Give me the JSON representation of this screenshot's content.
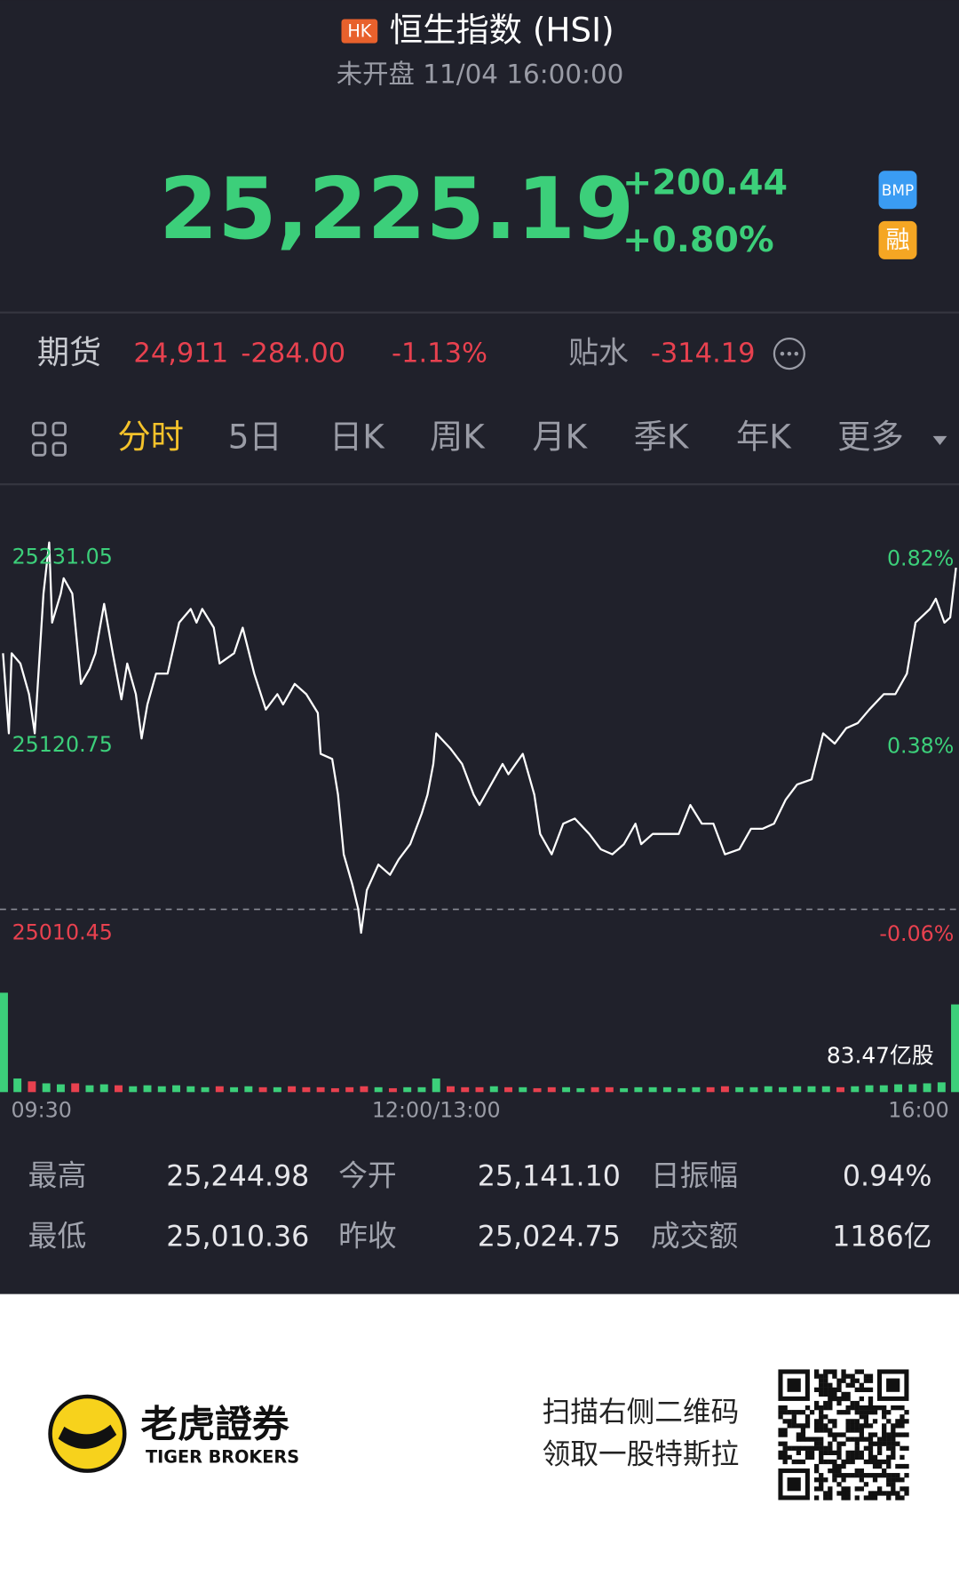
{
  "header": {
    "market_badge": "HK",
    "title": "恒生指数 (HSI)",
    "status": "未开盘 11/04 16:00:00"
  },
  "quote": {
    "price": "25,225.19",
    "change": "+200.44",
    "change_pct": "+0.80%",
    "badges": [
      "BMP",
      "融"
    ]
  },
  "futures": {
    "label": "期货",
    "price": "24,911",
    "change": "-284.00",
    "change_pct": "-1.13%",
    "basis_label": "贴水",
    "basis": "-314.19"
  },
  "tabs": [
    "分时",
    "5日",
    "日K",
    "周K",
    "月K",
    "季K",
    "年K",
    "更多"
  ],
  "chart_data": {
    "type": "line",
    "color": "#ffffff",
    "up_color": "#3ccf7a",
    "down_color": "#e8414f",
    "reference_line": 25024.75,
    "x": [
      0,
      2,
      3,
      6,
      9,
      11,
      14,
      16,
      17,
      20,
      21,
      24,
      27,
      30,
      32,
      35,
      38,
      41,
      43,
      46,
      48,
      50,
      53,
      57,
      61,
      65,
      67,
      69,
      73,
      75,
      80,
      83,
      87,
      91,
      95,
      97,
      101,
      105,
      109,
      110,
      114,
      116,
      118,
      121,
      123,
      124,
      126,
      130,
      134,
      137,
      141,
      145,
      147,
      149,
      150,
      155,
      159,
      163,
      165,
      169,
      173,
      175,
      180,
      184,
      186,
      190,
      194,
      198,
      203,
      207,
      211,
      215,
      219,
      221,
      225,
      230,
      234,
      238,
      242,
      246,
      250,
      255,
      259,
      263,
      267,
      271,
      275,
      280,
      284,
      288,
      292,
      296,
      300,
      305,
      309,
      313,
      316,
      321,
      323,
      326,
      328,
      330
    ],
    "values": [
      25175,
      25128,
      25175,
      25169,
      25151,
      25128,
      25210,
      25240,
      25193,
      25210,
      25219,
      25210,
      25157,
      25166,
      25175,
      25204,
      25175,
      25148,
      25169,
      25151,
      25125,
      25145,
      25163,
      25163,
      25193,
      25201,
      25193,
      25201,
      25190,
      25169,
      25175,
      25190,
      25163,
      25142,
      25151,
      25145,
      25157,
      25151,
      25140,
      25116,
      25113,
      25092,
      25057,
      25039,
      25025,
      25011,
      25036,
      25051,
      25045,
      25054,
      25063,
      25081,
      25092,
      25110,
      25128,
      25119,
      25110,
      25092,
      25086,
      25098,
      25110,
      25104,
      25116,
      25092,
      25069,
      25057,
      25075,
      25078,
      25069,
      25060,
      25057,
      25063,
      25075,
      25063,
      25069,
      25069,
      25069,
      25086,
      25075,
      25075,
      25057,
      25060,
      25072,
      25072,
      25075,
      25089,
      25098,
      25101,
      25128,
      25122,
      25131,
      25134,
      25142,
      25151,
      25151,
      25163,
      25193,
      25201,
      25207,
      25193,
      25196,
      25225.19
    ],
    "xlim": [
      0,
      330
    ],
    "xticks": [
      {
        "value": 0,
        "label": "09:30"
      },
      {
        "value": 150,
        "label": "12:00/13:00"
      },
      {
        "value": 330,
        "label": "16:00"
      }
    ],
    "ylim": [
      24990,
      25260
    ],
    "yticks": [
      25231.05,
      25120.75,
      25010.45
    ],
    "y2lim": [
      -0.1389,
      0.9401
    ],
    "y2ticks": [
      {
        "value": 0.82,
        "label": "0.82%"
      },
      {
        "value": 0.38,
        "label": "0.38%"
      },
      {
        "value": -0.06,
        "label": "-0.06%"
      }
    ],
    "volume": {
      "label": "83.47亿股",
      "ylim": [
        0,
        10
      ],
      "x": [
        0,
        5,
        10,
        15,
        20,
        25,
        30,
        35,
        40,
        45,
        50,
        55,
        60,
        65,
        70,
        75,
        80,
        85,
        90,
        95,
        100,
        105,
        110,
        115,
        120,
        125,
        130,
        135,
        140,
        145,
        150,
        155,
        160,
        165,
        170,
        175,
        180,
        185,
        190,
        195,
        200,
        205,
        210,
        215,
        220,
        225,
        230,
        235,
        240,
        245,
        250,
        255,
        260,
        265,
        270,
        275,
        280,
        285,
        290,
        295,
        300,
        305,
        310,
        315,
        320,
        325,
        330
      ],
      "values": [
        10.2,
        1.4,
        1.1,
        0.9,
        0.8,
        0.9,
        0.7,
        0.8,
        0.7,
        0.6,
        0.7,
        0.6,
        0.7,
        0.6,
        0.5,
        0.6,
        0.5,
        0.6,
        0.5,
        0.5,
        0.6,
        0.5,
        0.5,
        0.4,
        0.5,
        0.6,
        0.5,
        0.4,
        0.5,
        0.5,
        1.4,
        0.6,
        0.5,
        0.5,
        0.6,
        0.5,
        0.5,
        0.4,
        0.5,
        0.5,
        0.4,
        0.5,
        0.5,
        0.4,
        0.5,
        0.5,
        0.5,
        0.4,
        0.5,
        0.5,
        0.6,
        0.5,
        0.5,
        0.6,
        0.5,
        0.6,
        0.6,
        0.6,
        0.5,
        0.6,
        0.7,
        0.7,
        0.8,
        0.8,
        0.9,
        1.0,
        9.0
      ]
    }
  },
  "stats": {
    "rows": [
      [
        {
          "label": "最高",
          "value": "25,244.98"
        },
        {
          "label": "今开",
          "value": "25,141.10"
        },
        {
          "label": "日振幅",
          "value": "0.94%"
        }
      ],
      [
        {
          "label": "最低",
          "value": "25,010.36"
        },
        {
          "label": "昨收",
          "value": "25,024.75"
        },
        {
          "label": "成交额",
          "value": "1186亿"
        }
      ]
    ]
  },
  "footer": {
    "brand": "老虎證券",
    "brand_en": "TIGER BROKERS",
    "promo": [
      "扫描右侧二维码",
      "领取一股特斯拉"
    ]
  }
}
